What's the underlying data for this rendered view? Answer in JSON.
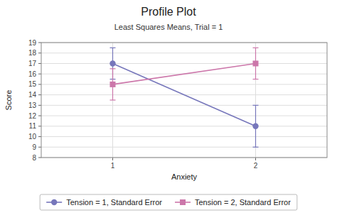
{
  "chart_data": {
    "type": "line",
    "title": "Profile Plot",
    "subtitle": "Least Squares Means, Trial = 1",
    "x_label": "Anxiety",
    "y_label": "Score",
    "x": [
      1,
      2
    ],
    "xlim": [
      0.5,
      2.5
    ],
    "xticks": [
      1,
      2
    ],
    "ylim": [
      8,
      19
    ],
    "yticks": [
      8,
      9,
      10,
      11,
      12,
      13,
      14,
      15,
      16,
      17,
      18,
      19
    ],
    "grid": true,
    "legend": "bottom",
    "series": [
      {
        "name": "Tension = 1, Standard Error",
        "color": "#7777bb",
        "marker": "circle",
        "values": [
          17,
          11
        ],
        "error_low": [
          1.5,
          2.0
        ],
        "error_high": [
          1.5,
          2.0
        ]
      },
      {
        "name": "Tension = 2, Standard Error",
        "color": "#cc77aa",
        "marker": "square",
        "values": [
          15,
          17
        ],
        "error_low": [
          1.5,
          1.5
        ],
        "error_high": [
          1.5,
          1.5
        ]
      }
    ]
  }
}
